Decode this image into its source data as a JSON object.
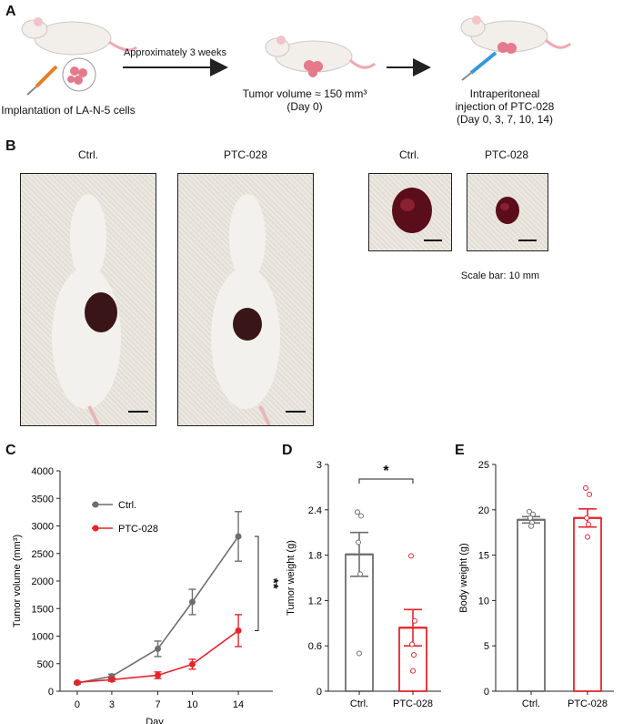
{
  "panels": {
    "a": "A",
    "b": "B",
    "c": "C",
    "d": "D",
    "e": "E"
  },
  "schematic": {
    "step1": "Implantation of LA-N-5 cells",
    "arrow1": "Approximately 3 weeks",
    "step2_line1": "Tumor volume ≈ 150 mm³",
    "step2_line2": "(Day 0)",
    "step3_line1": "Intraperitoneal",
    "step3_line2": "injection of PTC-028",
    "step3_line3": "(Day 0, 3, 7, 10, 14)"
  },
  "photos": {
    "mouse_ctrl": "Ctrl.",
    "mouse_ptc": "PTC-028",
    "tumor_ctrl": "Ctrl.",
    "tumor_ptc": "PTC-028",
    "scale": "Scale bar: 10 mm"
  },
  "colors": {
    "ctrl": "#6e6e6e",
    "ptc": "#e8242b"
  },
  "chart_data": [
    {
      "type": "line",
      "ylabel": "Tumor volume (mm³)",
      "xlabel": "Day",
      "x": [
        0,
        3,
        7,
        10,
        14
      ],
      "xlim": [
        -1.5,
        17
      ],
      "ylim": [
        0,
        4000
      ],
      "yticks": [
        0,
        500,
        1000,
        1500,
        2000,
        2500,
        3000,
        3500,
        4000
      ],
      "series": [
        {
          "name": "Ctrl.",
          "values": [
            150,
            270,
            770,
            1620,
            2810
          ],
          "errors": [
            20,
            40,
            140,
            230,
            450
          ]
        },
        {
          "name": "PTC-028",
          "values": [
            160,
            210,
            290,
            490,
            1100
          ],
          "errors": [
            15,
            30,
            60,
            90,
            290
          ]
        }
      ],
      "significance": "**",
      "legend": "upper-left"
    },
    {
      "type": "bar",
      "ylabel": "Tumor weight (g)",
      "categories": [
        "Ctrl.",
        "PTC-028"
      ],
      "values": [
        1.81,
        0.84
      ],
      "errors": [
        0.29,
        0.24
      ],
      "points": [
        [
          2.37,
          2.32,
          1.97,
          1.55,
          0.5
        ],
        [
          1.79,
          0.93,
          0.62,
          0.48,
          0.27
        ]
      ],
      "ylim": [
        0,
        3
      ],
      "yticks": [
        0,
        0.6,
        1.2,
        1.8,
        2.4,
        3
      ],
      "significance": "*"
    },
    {
      "type": "bar",
      "ylabel": "Body weight (g)",
      "categories": [
        "Ctrl.",
        "PTC-028"
      ],
      "values": [
        18.9,
        19.1
      ],
      "errors": [
        0.35,
        1.0
      ],
      "points": [
        [
          19.8,
          19.5,
          19.1,
          18.6,
          18.2
        ],
        [
          22.4,
          21.7,
          19.1,
          18.4,
          17.0
        ]
      ],
      "ylim": [
        0,
        25
      ],
      "yticks": [
        0,
        5,
        10,
        15,
        20,
        25
      ]
    }
  ]
}
